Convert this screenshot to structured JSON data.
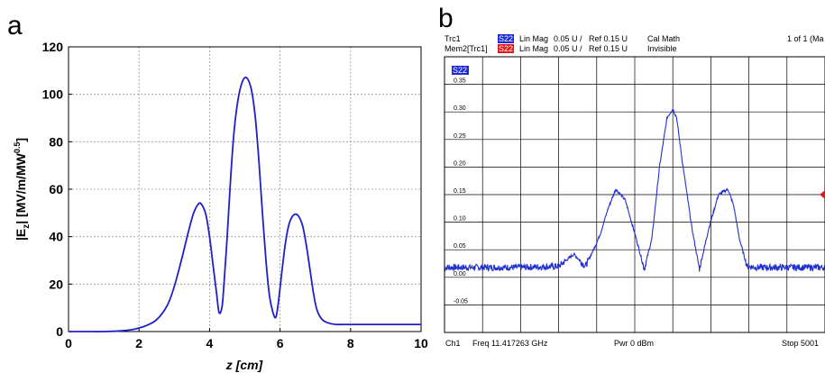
{
  "chart_data": [
    {
      "panel": "a",
      "type": "line",
      "title": "",
      "xlabel": "z [cm]",
      "ylabel": "|E",
      "ylabel_sub": "z",
      "ylabel_tail": "| [MV/m/MW",
      "ylabel_sup": "0.5",
      "ylabel_close": "]",
      "xlim": [
        0,
        10
      ],
      "ylim": [
        0,
        120
      ],
      "xticks": [
        0,
        2,
        4,
        6,
        8,
        10
      ],
      "yticks": [
        0,
        20,
        40,
        60,
        80,
        100,
        120
      ],
      "grid": true,
      "line_color": "#2020c8",
      "series": [
        {
          "x": [
            0,
            0.5,
            1.0,
            1.5,
            1.8,
            2.0,
            2.2,
            2.5,
            2.8,
            3.0,
            3.2,
            3.4,
            3.55,
            3.7,
            3.8,
            3.9,
            4.0,
            4.1,
            4.2,
            4.27,
            4.35,
            4.4,
            4.5,
            4.6,
            4.7,
            4.8,
            4.9,
            5.0,
            5.1,
            5.2,
            5.3,
            5.4,
            5.5,
            5.6,
            5.7,
            5.8,
            5.88,
            5.95,
            6.05,
            6.15,
            6.25,
            6.35,
            6.45,
            6.55,
            6.65,
            6.75,
            6.85,
            6.95,
            7.05,
            7.2,
            7.4,
            7.6,
            8.0,
            9.0,
            10.0
          ],
          "y": [
            0,
            0,
            0,
            0.3,
            0.8,
            1.5,
            2.5,
            5,
            11,
            19,
            30,
            42,
            50,
            54,
            53,
            49,
            40,
            28,
            16,
            8,
            10,
            18,
            40,
            65,
            85,
            97,
            104,
            107,
            106,
            101,
            90,
            72,
            50,
            30,
            15,
            8,
            6,
            12,
            25,
            37,
            45,
            48.5,
            49.5,
            48,
            44,
            36,
            26,
            16,
            9,
            5,
            3.5,
            3,
            3,
            3,
            3
          ]
        }
      ]
    },
    {
      "panel": "b",
      "type": "line",
      "title": "",
      "xlabel": "",
      "ylabel": "",
      "header": {
        "row1": {
          "trace": "Trc1",
          "badge": "S22",
          "badge_color": "#1c2ad8",
          "format": "Lin Mag",
          "scale": "0.05 U /",
          "ref": "Ref 0.15 U",
          "math": "Cal Math",
          "right": "1 of 1 (Ma"
        },
        "row2": {
          "trace": "Mem2[Trc1]",
          "badge": "S22",
          "badge_color": "#e01818",
          "format": "Lin Mag",
          "scale": "0.05 U /",
          "ref": "Ref 0.15 U",
          "math": "Invisible"
        },
        "trace_badge": "S22"
      },
      "footer": {
        "channel": "Ch1",
        "freq": "Freq 11.417263 GHz",
        "power": "Pwr 0 dBm",
        "stop": "Stop 5001"
      },
      "ylim": [
        -0.1,
        0.4
      ],
      "yticks": [
        -0.05,
        0.0,
        0.05,
        0.1,
        0.15,
        0.2,
        0.25,
        0.3,
        0.35
      ],
      "ytick_labels": [
        "-0.05",
        "0.00",
        "0.05",
        "0.10",
        "0.15",
        "0.20",
        "0.25",
        "0.30",
        "0.35"
      ],
      "xlim": [
        0,
        10
      ],
      "grid": true,
      "line_color": "#2030d0",
      "ref_marker": {
        "value": 0.15,
        "color": "#e01818"
      },
      "series": [
        {
          "x": [
            0,
            1.0,
            2.0,
            3.0,
            3.4,
            3.7,
            3.95,
            4.1,
            4.3,
            4.5,
            4.75,
            5.0,
            5.25,
            5.45,
            5.65,
            5.85,
            6.0,
            6.1,
            6.25,
            6.5,
            6.7,
            6.95,
            7.2,
            7.45,
            7.6,
            7.75,
            7.95,
            8.2,
            8.45,
            8.65,
            8.8,
            9.0,
            9.5,
            10.0
          ],
          "y": [
            0.018,
            0.018,
            0.018,
            0.02,
            0.042,
            0.02,
            0.055,
            0.08,
            0.125,
            0.16,
            0.14,
            0.08,
            0.015,
            0.07,
            0.2,
            0.29,
            0.305,
            0.29,
            0.21,
            0.09,
            0.015,
            0.09,
            0.15,
            0.16,
            0.13,
            0.07,
            0.02,
            0.018,
            0.018,
            0.018,
            0.018,
            0.018,
            0.018,
            0.018
          ]
        }
      ]
    }
  ]
}
